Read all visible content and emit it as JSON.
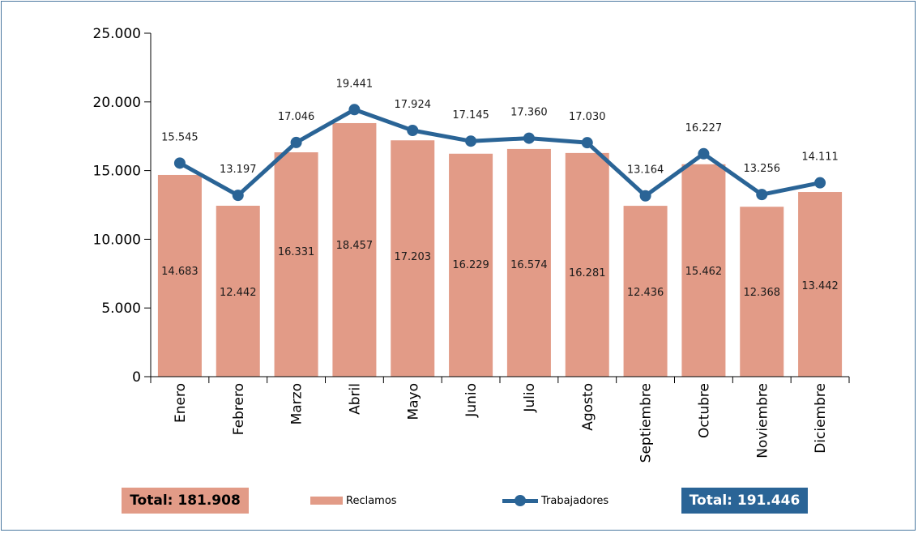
{
  "chart_data": {
    "type": "bar",
    "categories": [
      "Enero",
      "Febrero",
      "Marzo",
      "Abril",
      "Mayo",
      "Junio",
      "Julio",
      "Agosto",
      "Septiembre",
      "Octubre",
      "Noviembre",
      "Diciembre"
    ],
    "series": [
      {
        "name": "Reclamos",
        "type": "bar",
        "values": [
          14683,
          12442,
          16331,
          18457,
          17203,
          16229,
          16574,
          16281,
          12436,
          15462,
          12368,
          13442
        ],
        "labels": [
          "14.683",
          "12.442",
          "16.331",
          "18.457",
          "17.203",
          "16.229",
          "16.574",
          "16.281",
          "12.436",
          "15.462",
          "12.368",
          "13.442"
        ],
        "color": "#e29b87"
      },
      {
        "name": "Trabajadores",
        "type": "line",
        "values": [
          15545,
          13197,
          17046,
          19441,
          17924,
          17145,
          17360,
          17030,
          13164,
          16227,
          13256,
          14111
        ],
        "labels": [
          "15.545",
          "13.197",
          "17.046",
          "19.441",
          "17.924",
          "17.145",
          "17.360",
          "17.030",
          "13.164",
          "16.227",
          "13.256",
          "14.111"
        ],
        "color": "#2a6496"
      }
    ],
    "ylim": [
      0,
      25000
    ],
    "yticks": [
      0,
      5000,
      10000,
      15000,
      20000,
      25000
    ],
    "ytick_labels": [
      "0",
      "5.000",
      "10.000",
      "15.000",
      "20.000",
      "25.000"
    ],
    "grid": false,
    "legend_position": "bottom"
  },
  "footer": {
    "total_reclamos": "Total: 181.908",
    "total_trabajadores": "Total: 191.446"
  },
  "legend": {
    "bar_label": "Reclamos",
    "line_label": "Trabajadores"
  },
  "colors": {
    "bar": "#e29b87",
    "line": "#2a6496",
    "frame": "#4a78a0"
  }
}
